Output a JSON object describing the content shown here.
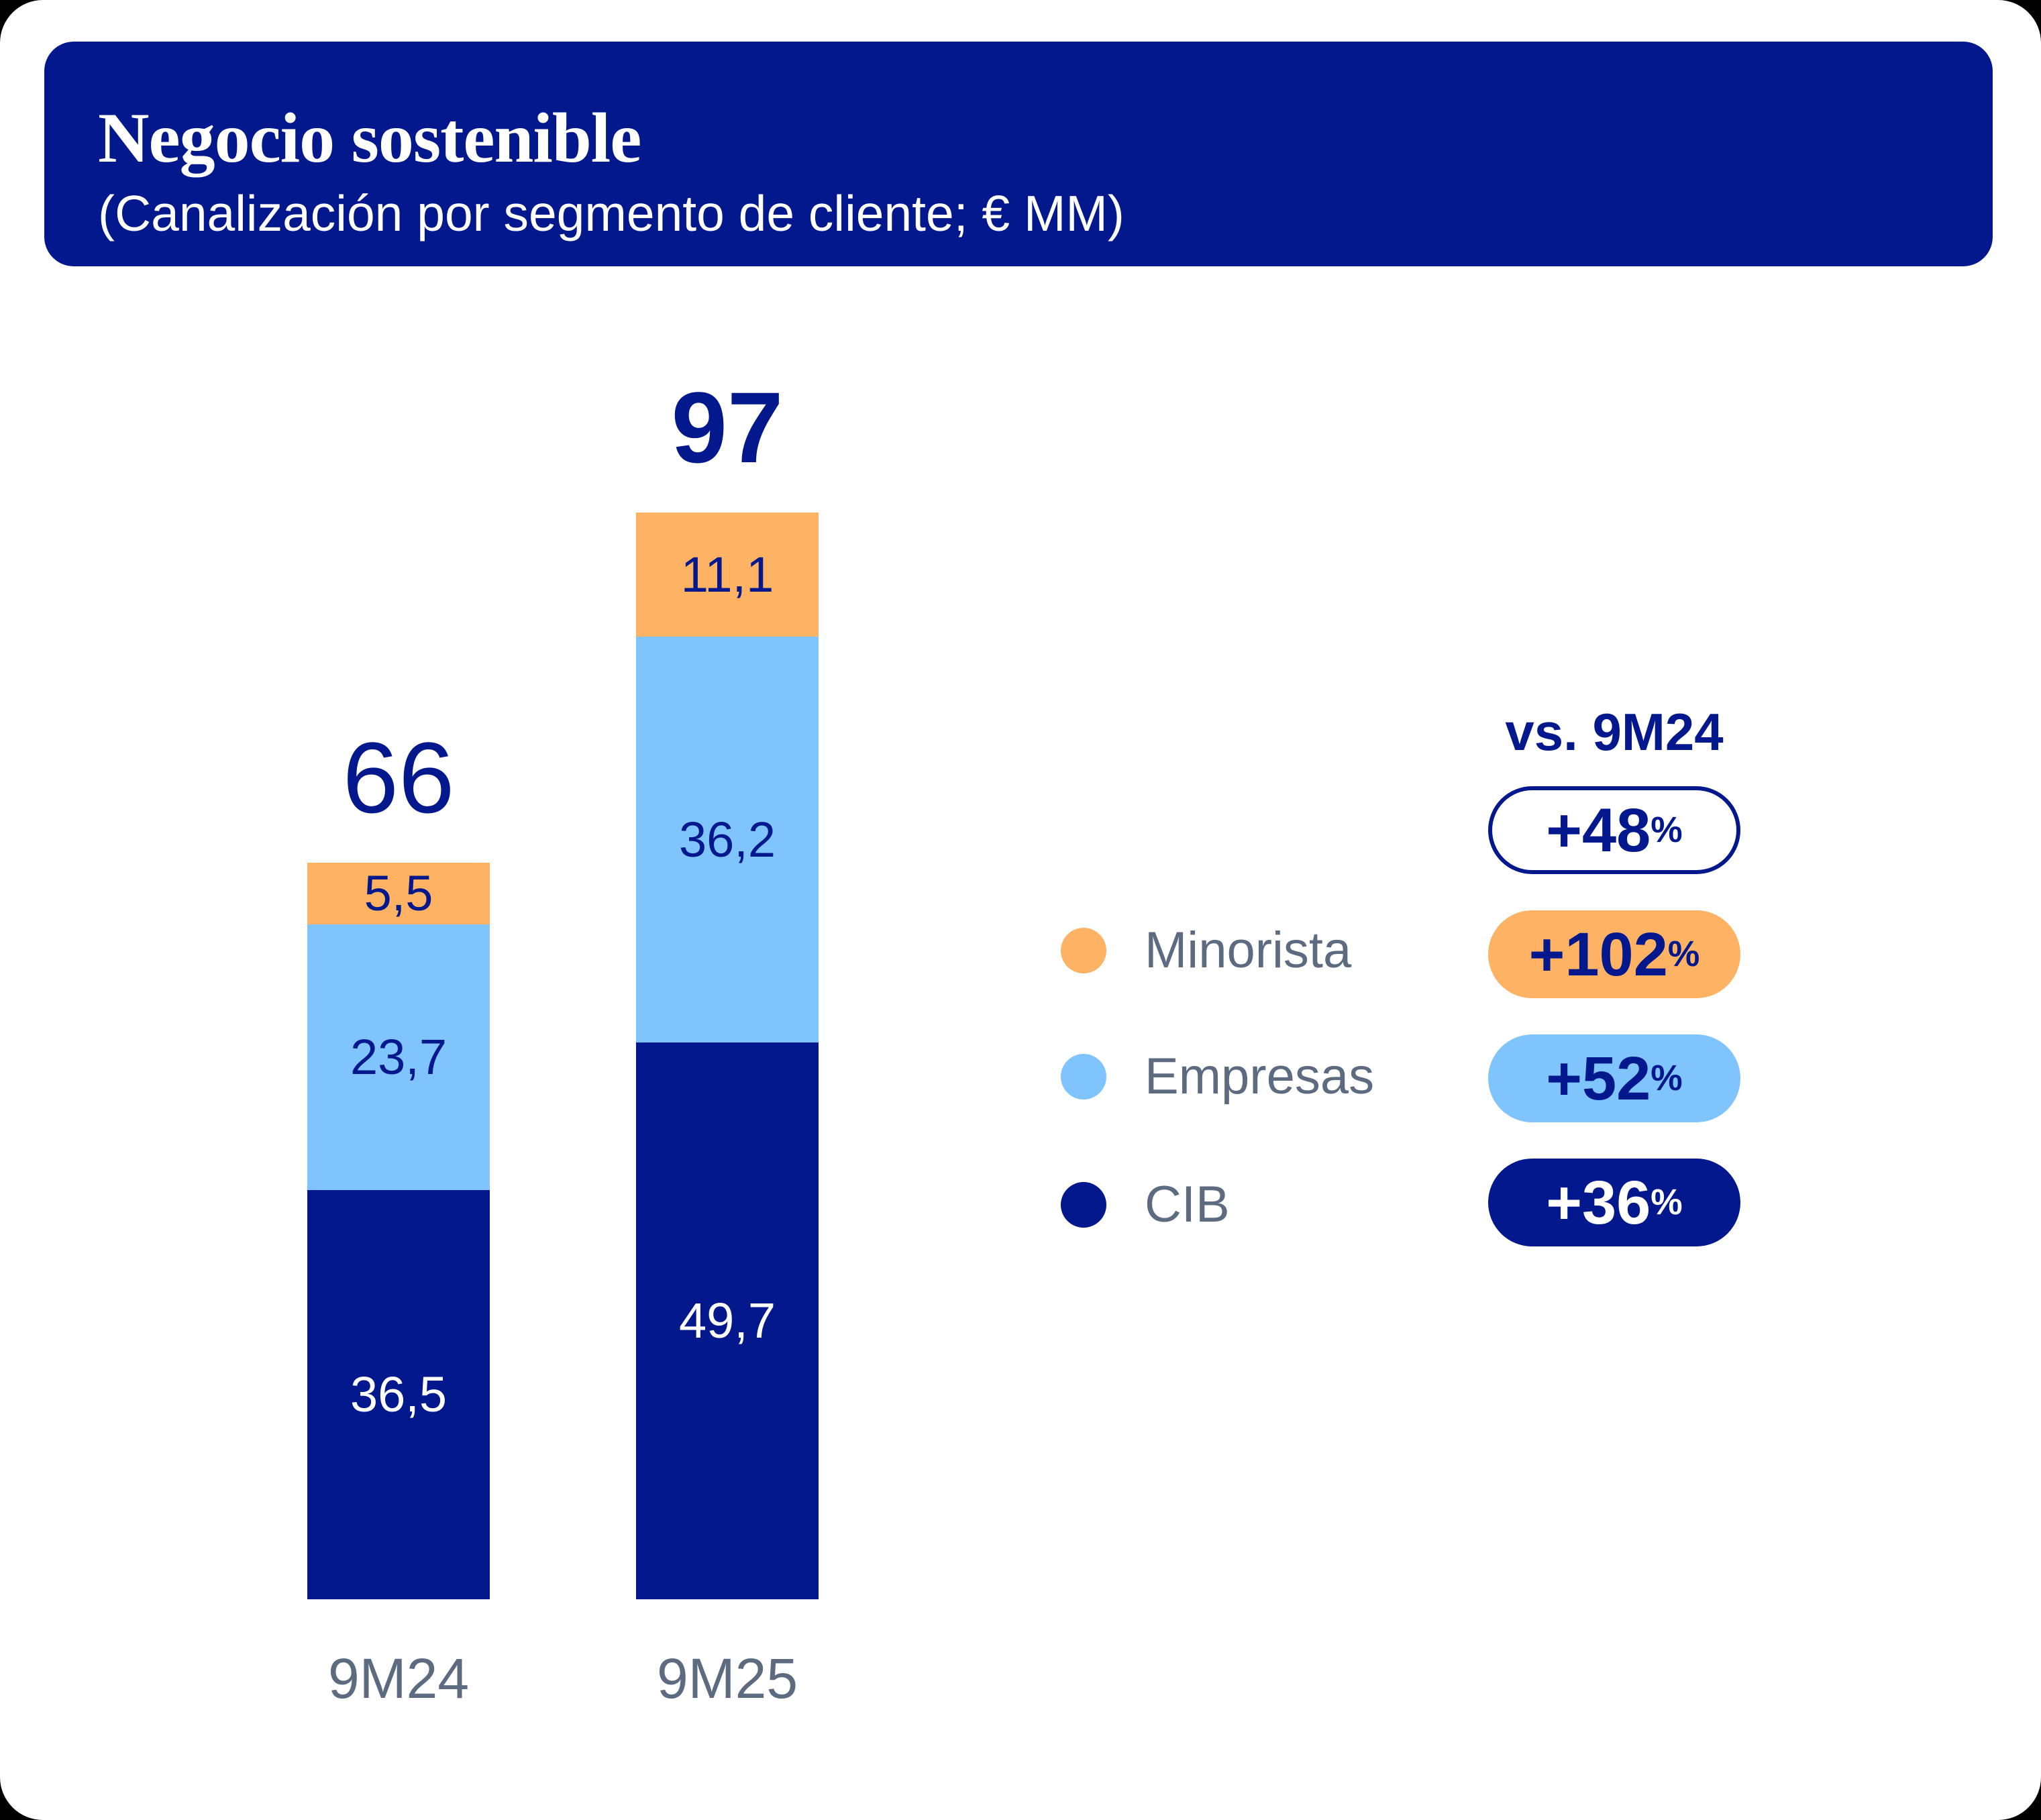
{
  "header": {
    "title": "Negocio sostenible",
    "subtitle": "(Canalización por segmento de cliente; € MM)",
    "background": "#02188C"
  },
  "chart_data": {
    "type": "bar",
    "stacked": true,
    "title": "Negocio sostenible",
    "subtitle": "(Canalización por segmento de cliente; € MM)",
    "unit": "€ MM",
    "categories": [
      "9M24",
      "9M25"
    ],
    "series": [
      {
        "name": "CIB",
        "color": "#02188C",
        "values": [
          36.5,
          49.7
        ]
      },
      {
        "name": "Empresas",
        "color": "#7FC4FC",
        "values": [
          23.7,
          36.2
        ]
      },
      {
        "name": "Minorista",
        "color": "#FDB264",
        "values": [
          5.5,
          11.1
        ]
      }
    ],
    "totals": [
      66,
      97
    ],
    "grid": false,
    "legend_position": "right",
    "ylim": [
      0,
      100
    ]
  },
  "bars": [
    {
      "category": "9M24",
      "total_label": "66",
      "segments": [
        {
          "name": "CIB",
          "label": "36,5"
        },
        {
          "name": "Empresas",
          "label": "23,7"
        },
        {
          "name": "Minorista",
          "label": "5,5"
        }
      ]
    },
    {
      "category": "9M25",
      "total_label": "97",
      "segments": [
        {
          "name": "CIB",
          "label": "49,7"
        },
        {
          "name": "Empresas",
          "label": "36,2"
        },
        {
          "name": "Minorista",
          "label": "11,1"
        }
      ]
    }
  ],
  "legend": {
    "items": [
      {
        "label": "Minorista",
        "color": "#FDB264"
      },
      {
        "label": "Empresas",
        "color": "#7FC4FC"
      },
      {
        "label": "CIB",
        "color": "#02188C"
      }
    ]
  },
  "comparison": {
    "title": "vs. 9M24",
    "pills": [
      {
        "value": "+48",
        "suffix": "%",
        "variant": "outline-navy"
      },
      {
        "value": "+102",
        "suffix": "%",
        "variant": "orange"
      },
      {
        "value": "+52",
        "suffix": "%",
        "variant": "light-blue"
      },
      {
        "value": "+36",
        "suffix": "%",
        "variant": "navy"
      }
    ]
  },
  "colors": {
    "navy": "#02188C",
    "orange": "#FDB264",
    "light_blue": "#7FC4FC",
    "slate_text": "#5C6B80",
    "card_background": "#ffffff"
  }
}
